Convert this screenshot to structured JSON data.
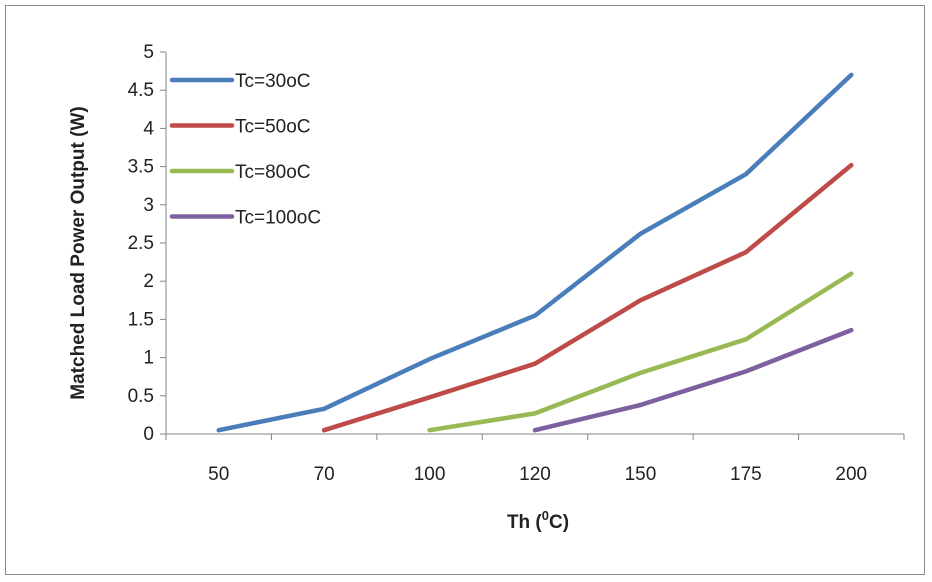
{
  "chart_data": {
    "type": "line",
    "categories": [
      "50",
      "70",
      "100",
      "120",
      "150",
      "175",
      "200"
    ],
    "xlabel_main": "Th (",
    "xlabel_sup": "0",
    "xlabel_end": "C)",
    "ylabel": "Matched Load Power Output (W)",
    "ylim": [
      0,
      5
    ],
    "yticks": [
      "0",
      "0.5",
      "1",
      "1.5",
      "2",
      "2.5",
      "3",
      "3.5",
      "4",
      "4.5",
      "5"
    ],
    "grid": false,
    "legend_position": "top-left",
    "series": [
      {
        "name": "Tc=30oC",
        "color": "#4a7ebb",
        "values": [
          0.05,
          0.33,
          0.98,
          1.55,
          2.62,
          3.4,
          4.7
        ]
      },
      {
        "name": "Tc=50oC",
        "color": "#be4b48",
        "values": [
          null,
          0.05,
          0.48,
          0.92,
          1.75,
          2.38,
          3.52
        ]
      },
      {
        "name": "Tc=80oC",
        "color": "#98b954",
        "values": [
          null,
          null,
          0.05,
          0.27,
          0.8,
          1.24,
          2.1
        ]
      },
      {
        "name": "Tc=100oC",
        "color": "#7d60a0",
        "values": [
          null,
          null,
          null,
          0.05,
          0.38,
          0.82,
          1.36
        ]
      }
    ]
  }
}
